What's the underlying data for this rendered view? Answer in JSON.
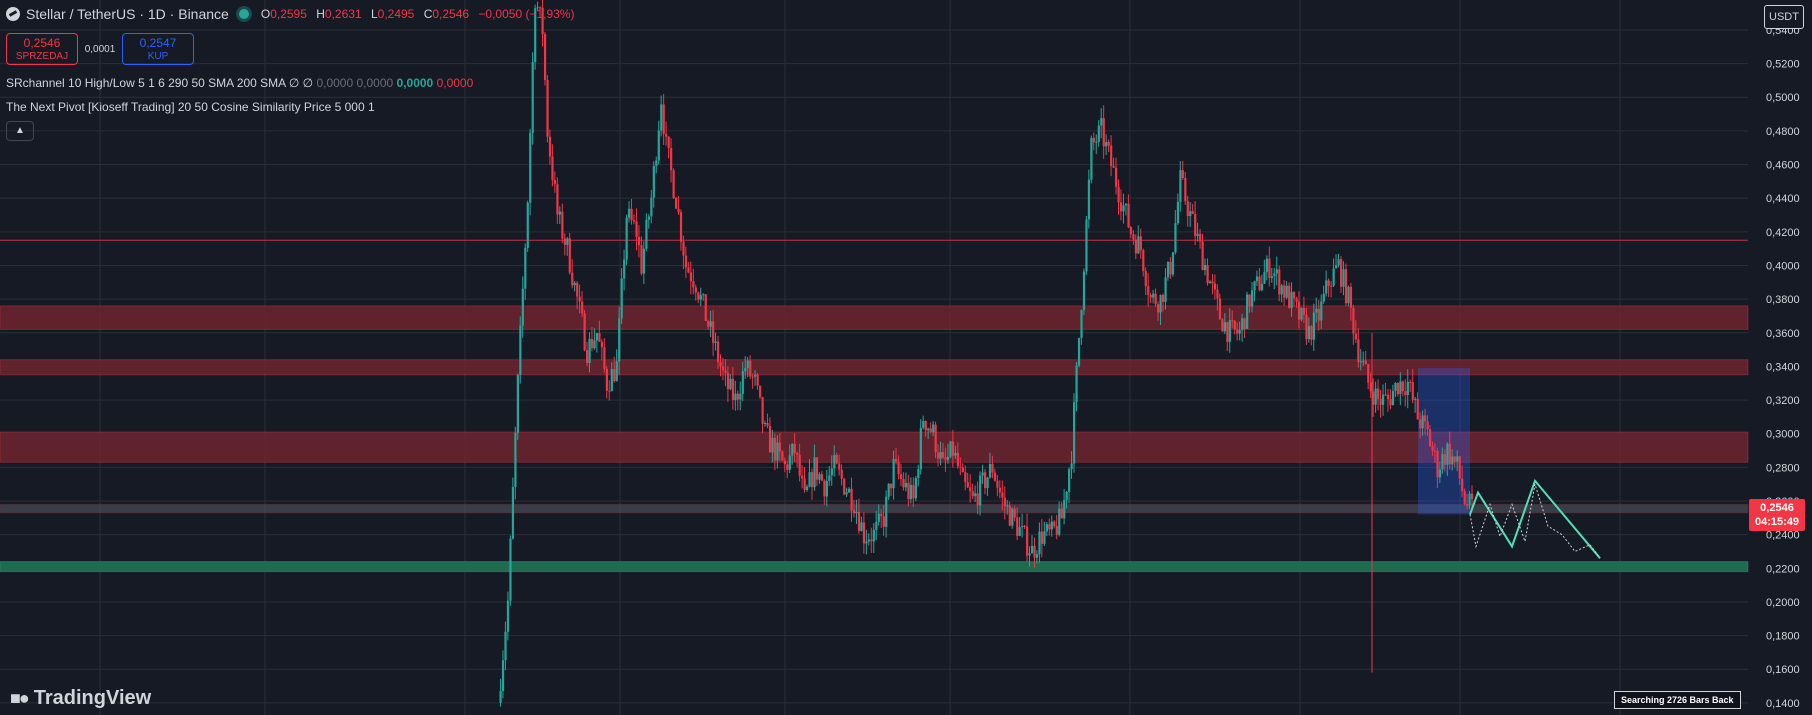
{
  "header": {
    "symbol": "Stellar / TetherUS · 1D · Binance",
    "ohlc": {
      "o_label": "O",
      "o": "0,2595",
      "h_label": "H",
      "h": "0,2631",
      "l_label": "L",
      "l": "0,2495",
      "c_label": "C",
      "c": "0,2546",
      "change": "−0,0050 (−1,93%)"
    }
  },
  "trade": {
    "sell_price": "0,2546",
    "sell_label": "SPRZEDAJ",
    "spread": "0,0001",
    "buy_price": "0,2547",
    "buy_label": "KUP"
  },
  "indicators": [
    {
      "text": "SRchannel 10 High/Low 5 1 6 290 50 SMA 200 SMA  ∅  ∅",
      "v1": "0,0000",
      "v2": "0,0000",
      "v3": "0,0000",
      "v4": "0,0000"
    },
    {
      "text": "The Next Pivot [Kioseff Trading] 20 50 Cosine Similarity Price 5 000 1"
    }
  ],
  "currency": "USDT",
  "last_price": {
    "price": "0,2546",
    "countdown": "04:15:49"
  },
  "status_text": "Searching 2726 Bars Back",
  "brand": "TradingView",
  "colors": {
    "up": "#26a69a",
    "down": "#f23645",
    "background": "#161a25",
    "resistance_zone": "#6e2530",
    "support_zone": "#1f6b4e"
  },
  "chart_data": {
    "type": "candlestick",
    "y_axis_labels": [
      "0,5400",
      "0,5200",
      "0,5000",
      "0,4800",
      "0,4600",
      "0,4400",
      "0,4200",
      "0,4000",
      "0,3800",
      "0,3600",
      "0,3400",
      "0,3200",
      "0,3000",
      "0,2800",
      "0,2600",
      "0,2400",
      "0,2200",
      "0,2000",
      "0,1800",
      "0,1600",
      "0,1400"
    ],
    "ylim": [
      0.1328,
      0.5578
    ],
    "grid": true,
    "zones": [
      {
        "type": "resistance",
        "from": 0.362,
        "to": 0.376
      },
      {
        "type": "resistance",
        "from": 0.335,
        "to": 0.344
      },
      {
        "type": "resistance",
        "from": 0.283,
        "to": 0.301
      },
      {
        "type": "neutral",
        "from": 0.253,
        "to": 0.258
      },
      {
        "type": "support",
        "from": 0.218,
        "to": 0.224
      }
    ],
    "horizontal_line": 0.415,
    "path": [
      [
        0,
        0.14
      ],
      [
        4,
        0.2
      ],
      [
        8,
        0.33
      ],
      [
        12,
        0.44
      ],
      [
        15,
        0.56
      ],
      [
        18,
        0.54
      ],
      [
        20,
        0.48
      ],
      [
        24,
        0.43
      ],
      [
        28,
        0.41
      ],
      [
        32,
        0.38
      ],
      [
        36,
        0.35
      ],
      [
        40,
        0.36
      ],
      [
        44,
        0.33
      ],
      [
        48,
        0.34
      ],
      [
        52,
        0.43
      ],
      [
        56,
        0.42
      ],
      [
        58,
        0.4
      ],
      [
        62,
        0.44
      ],
      [
        66,
        0.5
      ],
      [
        68,
        0.47
      ],
      [
        72,
        0.44
      ],
      [
        76,
        0.4
      ],
      [
        80,
        0.39
      ],
      [
        84,
        0.37
      ],
      [
        88,
        0.35
      ],
      [
        92,
        0.33
      ],
      [
        96,
        0.32
      ],
      [
        100,
        0.34
      ],
      [
        104,
        0.33
      ],
      [
        108,
        0.3
      ],
      [
        112,
        0.29
      ],
      [
        116,
        0.28
      ],
      [
        120,
        0.29
      ],
      [
        124,
        0.26
      ],
      [
        128,
        0.28
      ],
      [
        132,
        0.27
      ],
      [
        136,
        0.28
      ],
      [
        140,
        0.27
      ],
      [
        144,
        0.26
      ],
      [
        148,
        0.24
      ],
      [
        152,
        0.24
      ],
      [
        156,
        0.25
      ],
      [
        160,
        0.28
      ],
      [
        164,
        0.27
      ],
      [
        168,
        0.26
      ],
      [
        172,
        0.31
      ],
      [
        176,
        0.3
      ],
      [
        180,
        0.28
      ],
      [
        184,
        0.29
      ],
      [
        188,
        0.27
      ],
      [
        192,
        0.26
      ],
      [
        196,
        0.27
      ],
      [
        200,
        0.28
      ],
      [
        204,
        0.26
      ],
      [
        208,
        0.25
      ],
      [
        212,
        0.24
      ],
      [
        216,
        0.23
      ],
      [
        220,
        0.24
      ],
      [
        224,
        0.24
      ],
      [
        228,
        0.25
      ],
      [
        232,
        0.29
      ],
      [
        236,
        0.38
      ],
      [
        240,
        0.47
      ],
      [
        244,
        0.48
      ],
      [
        248,
        0.46
      ],
      [
        252,
        0.44
      ],
      [
        256,
        0.42
      ],
      [
        260,
        0.41
      ],
      [
        264,
        0.38
      ],
      [
        268,
        0.38
      ],
      [
        272,
        0.4
      ],
      [
        276,
        0.45
      ],
      [
        280,
        0.43
      ],
      [
        284,
        0.41
      ],
      [
        288,
        0.39
      ],
      [
        292,
        0.37
      ],
      [
        296,
        0.36
      ],
      [
        300,
        0.36
      ],
      [
        304,
        0.38
      ],
      [
        308,
        0.39
      ],
      [
        312,
        0.4
      ],
      [
        316,
        0.39
      ],
      [
        320,
        0.38
      ],
      [
        324,
        0.37
      ],
      [
        328,
        0.36
      ],
      [
        332,
        0.37
      ],
      [
        336,
        0.39
      ],
      [
        340,
        0.4
      ],
      [
        344,
        0.38
      ],
      [
        348,
        0.35
      ],
      [
        352,
        0.33
      ],
      [
        356,
        0.32
      ],
      [
        360,
        0.32
      ],
      [
        364,
        0.33
      ],
      [
        368,
        0.33
      ],
      [
        372,
        0.31
      ],
      [
        376,
        0.3
      ],
      [
        380,
        0.28
      ],
      [
        384,
        0.29
      ],
      [
        388,
        0.28
      ],
      [
        391,
        0.26
      ],
      [
        394,
        0.255
      ]
    ]
  }
}
